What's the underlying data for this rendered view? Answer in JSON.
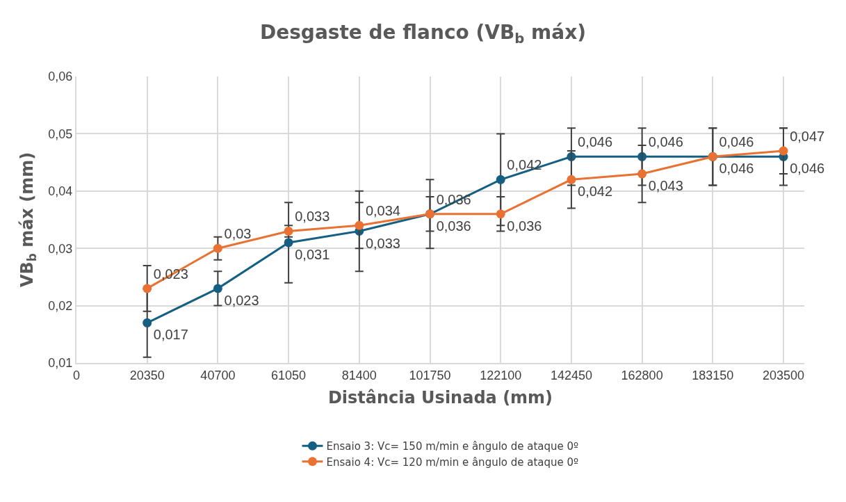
{
  "chart_data": {
    "type": "line",
    "title": "Desgaste de flanco (VB$_{b}$ máx)",
    "xlabel": "Distância Usinada (mm)",
    "ylabel": "VB$_{b}$ máx (mm)",
    "x": [
      20350,
      40700,
      61050,
      81400,
      101750,
      122100,
      142450,
      162800,
      183150,
      203500
    ],
    "xlim": [
      0,
      209500
    ],
    "xticks": [
      0,
      20350,
      40700,
      61050,
      81400,
      101750,
      122100,
      142450,
      162800,
      183150,
      203500
    ],
    "ylim": [
      0.01,
      0.06
    ],
    "yticks": [
      {
        "value": 0.01,
        "label": "0,01"
      },
      {
        "value": 0.02,
        "label": "0,02"
      },
      {
        "value": 0.03,
        "label": "0,03"
      },
      {
        "value": 0.04,
        "label": "0,04"
      },
      {
        "value": 0.05,
        "label": "0,05"
      },
      {
        "value": 0.06,
        "label": "0,06"
      }
    ],
    "grid": true,
    "legend": "bottom",
    "marker": "circle",
    "line_style": "solid",
    "series": [
      {
        "name": "Ensaio 3: Vc= 150 m/min e ângulo de ataque 0º",
        "color": "#156082",
        "values": [
          0.017,
          0.023,
          0.031,
          0.033,
          0.036,
          0.042,
          0.046,
          0.046,
          0.046,
          0.046
        ],
        "errors": [
          0.006,
          0.003,
          0.007,
          0.007,
          0.006,
          0.008,
          0.005,
          0.005,
          0.005,
          0.005
        ],
        "value_labels": [
          "0,017",
          "0,023",
          "0,031",
          "0,033",
          "0,036",
          "0,042",
          "0,046",
          "0,046",
          "0,046",
          "0,046"
        ]
      },
      {
        "name": "Ensaio 4: Vc= 120 m/min e ângulo de ataque 0º",
        "color": "#e97132",
        "values": [
          0.023,
          0.03,
          0.033,
          0.034,
          0.036,
          0.036,
          0.042,
          0.043,
          0.046,
          0.047
        ],
        "errors": [
          0.004,
          0.002,
          0.001,
          0.004,
          0.003,
          0.003,
          0.005,
          0.005,
          0.005,
          0.004
        ],
        "value_labels": [
          "0,023",
          "0,03",
          "0,033",
          "0,034",
          "0,036",
          "0,036",
          "0,042",
          "0,043",
          "0,046",
          "0,047"
        ]
      }
    ]
  }
}
